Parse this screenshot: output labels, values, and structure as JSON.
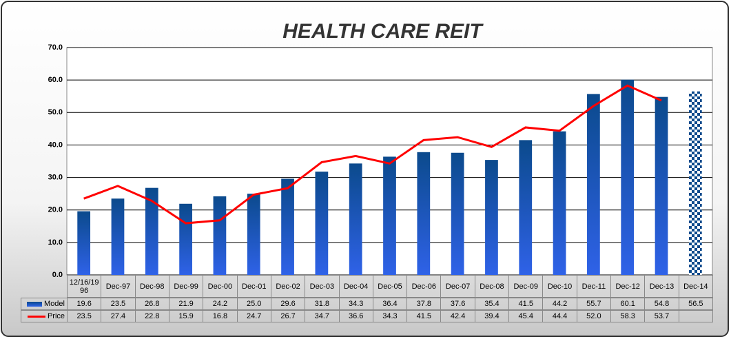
{
  "chart_data": {
    "type": "bar",
    "title": "HEALTH CARE REIT",
    "categories": [
      "12/16/1996",
      "Dec-97",
      "Dec-98",
      "Dec-99",
      "Dec-00",
      "Dec-01",
      "Dec-02",
      "Dec-03",
      "Dec-04",
      "Dec-05",
      "Dec-06",
      "Dec-07",
      "Dec-08",
      "Dec-09",
      "Dec-10",
      "Dec-11",
      "Dec-12",
      "Dec-13",
      "Dec-14"
    ],
    "series": [
      {
        "name": "Model",
        "type": "bar",
        "color": "#2f62e8",
        "values": [
          19.6,
          23.5,
          26.8,
          21.9,
          24.2,
          25.0,
          29.6,
          31.8,
          34.3,
          36.4,
          37.8,
          37.6,
          35.4,
          41.5,
          44.2,
          55.7,
          60.1,
          54.8,
          56.5
        ],
        "value_labels": [
          "19.6",
          "23.5",
          "26.8",
          "21.9",
          "24.2",
          "25.0",
          "29.6",
          "31.8",
          "34.3",
          "36.4",
          "37.8",
          "37.6",
          "35.4",
          "41.5",
          "44.2",
          "55.7",
          "60.1",
          "54.8",
          "56.5"
        ]
      },
      {
        "name": "Price",
        "type": "line",
        "color": "#ff0000",
        "values": [
          23.5,
          27.4,
          22.8,
          15.9,
          16.8,
          24.7,
          26.7,
          34.7,
          36.6,
          34.3,
          41.5,
          42.4,
          39.4,
          45.4,
          44.4,
          52.0,
          58.3,
          53.7,
          null
        ],
        "value_labels": [
          "23.5",
          "27.4",
          "22.8",
          "15.9",
          "16.8",
          "24.7",
          "26.7",
          "34.7",
          "36.6",
          "34.3",
          "41.5",
          "42.4",
          "39.4",
          "45.4",
          "44.4",
          "52.0",
          "58.3",
          "53.7",
          null
        ]
      }
    ],
    "ylim": [
      0,
      70
    ],
    "yticks": [
      {
        "value": 0,
        "label": "0.0"
      },
      {
        "value": 10,
        "label": "10.0"
      },
      {
        "value": 20,
        "label": "20.0"
      },
      {
        "value": 30,
        "label": "30.0"
      },
      {
        "value": 40,
        "label": "40.0"
      },
      {
        "value": 50,
        "label": "50.0"
      },
      {
        "value": 60,
        "label": "60.0"
      },
      {
        "value": 70,
        "label": "70.0"
      }
    ],
    "grid": true
  }
}
